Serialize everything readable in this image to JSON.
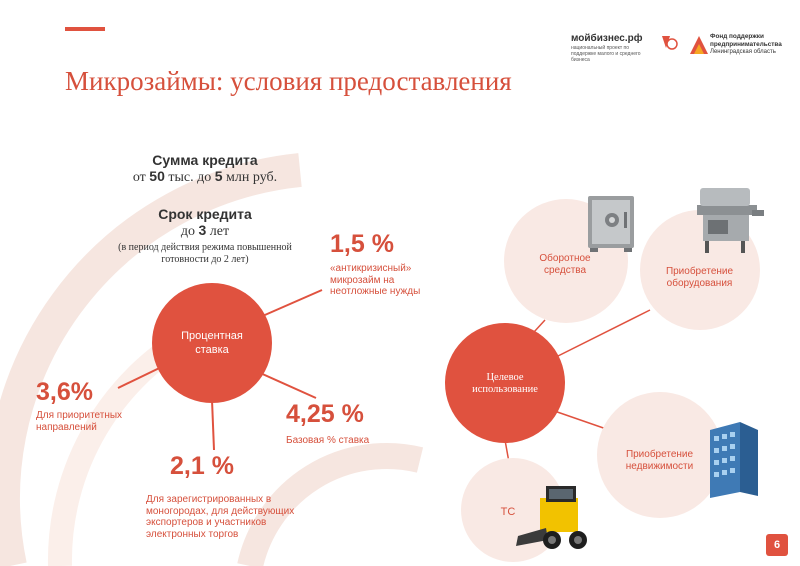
{
  "title": "Микрозаймы: условия предоставления",
  "logos": {
    "mybiz_name": "мойбизнес.рф",
    "mybiz_sub": "национальный проект по поддержке малого и среднего бизнеса",
    "fund_line1": "Фонд поддержки",
    "fund_line2": "предпринимательства",
    "fund_line3": "Ленинградская область"
  },
  "loan_amount": {
    "heading": "Сумма кредита",
    "pre": "от ",
    "min": "50",
    "mid": " тыс. до ",
    "max": "5",
    "post": " млн руб."
  },
  "loan_term": {
    "heading": "Срок кредита",
    "pre": "до ",
    "value": "3",
    "post": " лет",
    "note": "(в период действия режима повышенной готовности до 2 лет)"
  },
  "rate_circle": {
    "line1": "Процентная",
    "line2": "ставка"
  },
  "rates": [
    {
      "value": "1,5 %",
      "desc": [
        "«антикризисный»",
        "микрозайм на",
        "неотложные нужды"
      ]
    },
    {
      "value": "3,6%",
      "desc": [
        "Для приоритетных",
        "направлений"
      ]
    },
    {
      "value": "2,1 %",
      "desc": [
        "Для зарегистрированных в",
        "моногородах, для действующих",
        "экспортеров и участников",
        "электронных торгов"
      ]
    },
    {
      "value": "4,25 %",
      "desc": [
        "Базовая % ставка"
      ]
    }
  ],
  "purpose_circle": {
    "line1": "Целевое",
    "line2": "использование"
  },
  "purposes": [
    {
      "line1": "Оборотное",
      "line2": "средства",
      "icon": "safe-icon"
    },
    {
      "line1": "Приобретение",
      "line2": "оборудования",
      "icon": "machine-icon"
    },
    {
      "line1": "Приобретение",
      "line2": "недвижимости",
      "icon": "building-icon"
    },
    {
      "line1": "ТС",
      "line2": "",
      "icon": "loader-icon"
    }
  ],
  "page_number": "6",
  "colors": {
    "accent": "#d6503c",
    "circle_fill": "#e0523f",
    "light_circle": "#f9e9e4",
    "arc": "#f4e2dc"
  }
}
